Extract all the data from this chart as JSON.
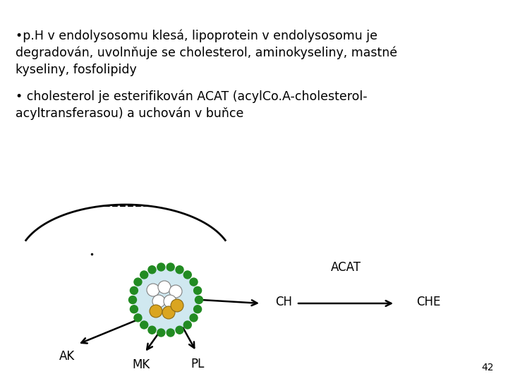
{
  "background_color": "#ffffff",
  "bullet1_line1": "•p.H v endolysosomu klesá, lipoprotein v endolysosomu je",
  "bullet1_line2": "degradován, uvolnňuje se cholesterol, aminokyseliny, mastné",
  "bullet1_line3": "kyseliny, fosfolipidy",
  "bullet2_line1": "• cholesterol je esterifikován ACAT (acylCo.A-cholesterol-",
  "bullet2_line2": "acyltransferasou) a uchován v buňce",
  "label_AK": "AK",
  "label_MK": "MK",
  "label_PL": "PL",
  "label_CH": "CH",
  "label_CHE": "CHE",
  "label_ACAT": "ACAT",
  "label_42": "42",
  "text_color": "#000000",
  "green_color": "#228B22",
  "light_blue": "#d0e8f0",
  "yellow_color": "#DAA520",
  "fontsize_main": 12.5,
  "fontsize_labels": 12,
  "fontsize_small": 10
}
